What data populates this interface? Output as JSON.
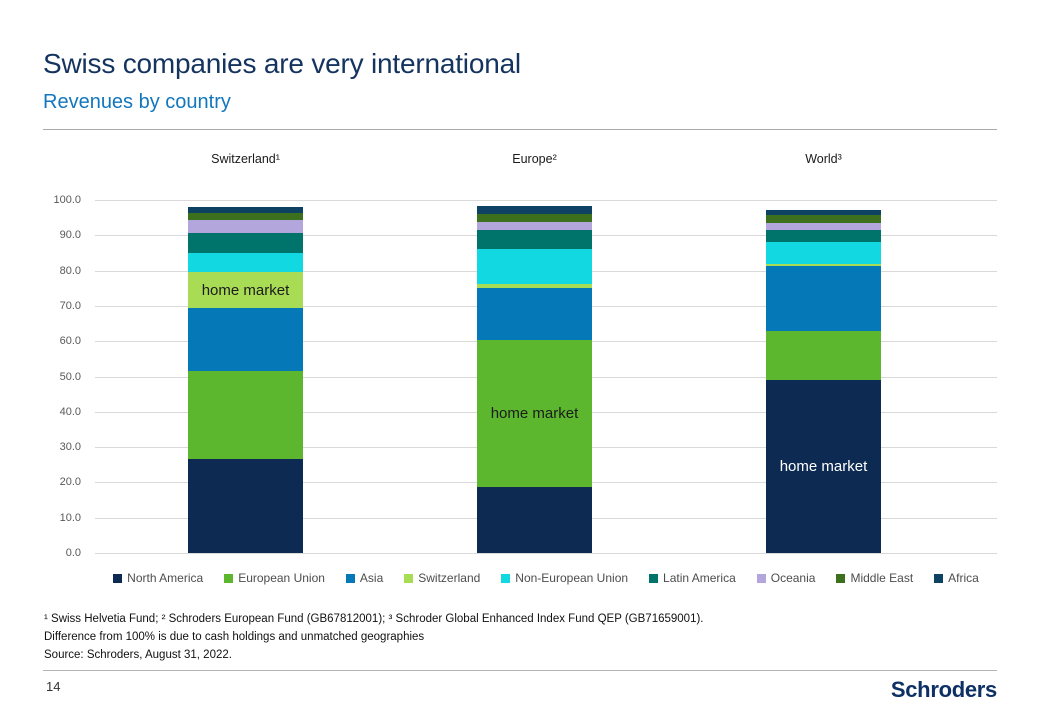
{
  "slide": {
    "title": "Swiss companies are very international",
    "subtitle": "Revenues by country",
    "page_number": "14",
    "brand": "Schroders",
    "footnotes": {
      "line1": "¹ Swiss Helvetia Fund; ² Schroders European Fund (GB67812001); ³ Schroder Global Enhanced Index Fund QEP (GB71659001).",
      "line2": "Difference from 100% is due to cash holdings and unmatched geographies",
      "line3": "Source: Schroders, August 31, 2022."
    }
  },
  "chart_data": {
    "type": "bar",
    "stacked": true,
    "title": "Revenues by country",
    "categories": [
      "Switzerland¹",
      "Europe²",
      "World³"
    ],
    "series": [
      {
        "name": "North America",
        "color": "#0d2b52",
        "values": [
          26.5,
          18.6,
          49.0
        ]
      },
      {
        "name": "European Union",
        "color": "#5cb72f",
        "values": [
          25.0,
          41.7,
          13.9
        ]
      },
      {
        "name": "Asia",
        "color": "#0578b8",
        "values": [
          18.0,
          14.9,
          18.4
        ]
      },
      {
        "name": "Switzerland",
        "color": "#a9dc55",
        "values": [
          10.0,
          1.1,
          0.7
        ]
      },
      {
        "name": "Non-European Union",
        "color": "#12d8e2",
        "values": [
          5.5,
          9.9,
          6.2
        ]
      },
      {
        "name": "Latin America",
        "color": "#00736a",
        "values": [
          5.7,
          5.2,
          3.3
        ]
      },
      {
        "name": "Oceania",
        "color": "#b3a6dc",
        "values": [
          3.6,
          2.4,
          1.9
        ]
      },
      {
        "name": "Middle East",
        "color": "#3d701d",
        "values": [
          2.1,
          2.2,
          2.4
        ]
      },
      {
        "name": "Africa",
        "color": "#0d4263",
        "values": [
          1.6,
          2.3,
          1.5
        ]
      }
    ],
    "annotations": [
      {
        "category_index": 0,
        "segment": "Switzerland",
        "text": "home market",
        "text_color": "#1c1c1c"
      },
      {
        "category_index": 1,
        "segment": "European Union",
        "text": "home market",
        "text_color": "#1c1c1c"
      },
      {
        "category_index": 2,
        "segment": "North America",
        "text": "home market",
        "text_color": "#ffffff"
      }
    ],
    "ylim": [
      0,
      100
    ],
    "tick_step": 10,
    "tick_decimals": 1,
    "grid": true,
    "legend_position": "bottom",
    "xlabel": "",
    "ylabel": ""
  }
}
